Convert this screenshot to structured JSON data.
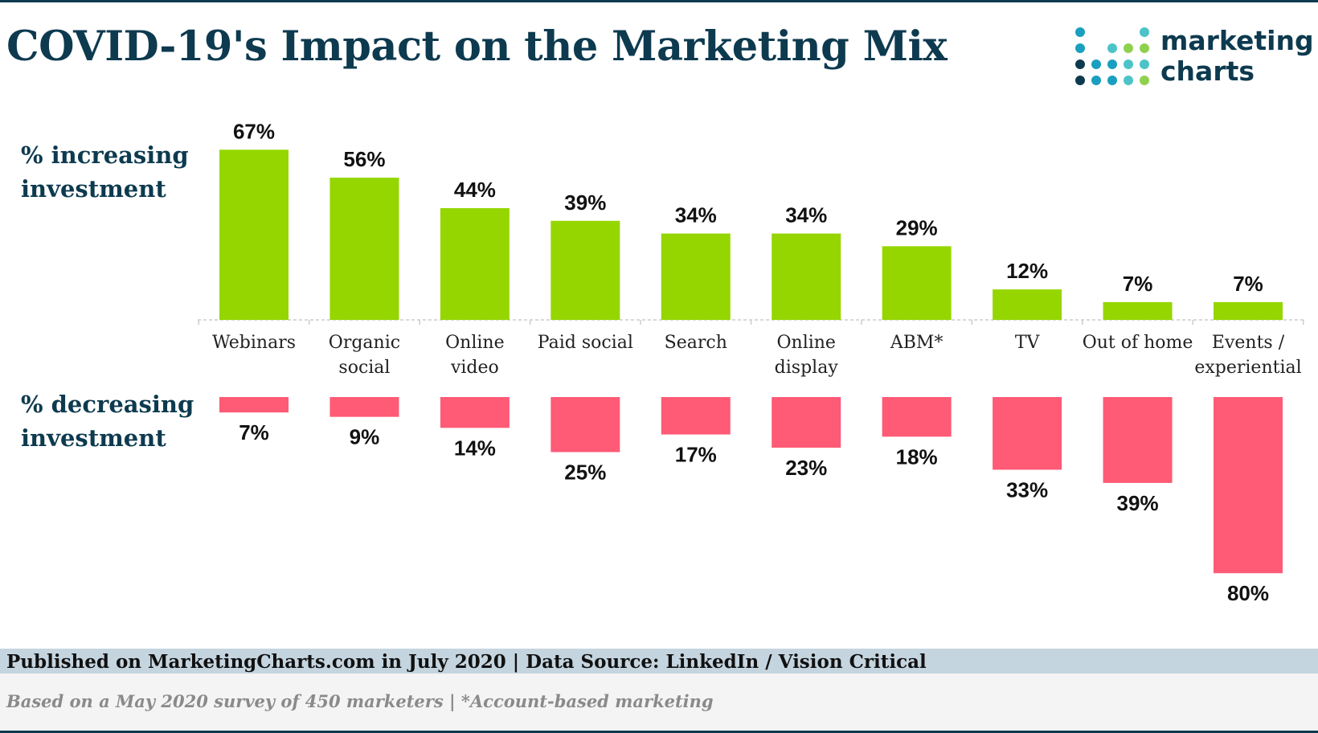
{
  "title": "COVID-19's Impact on the Marketing Mix",
  "logo": {
    "line1": "marketing",
    "line2": "charts"
  },
  "labels": {
    "increasing": [
      "% increasing",
      "investment"
    ],
    "decreasing": [
      "% decreasing",
      "investment"
    ]
  },
  "footer": {
    "source": "Published on MarketingCharts.com in July 2020 | Data Source: LinkedIn / Vision Critical",
    "note": "Based on a May 2020 survey of 450 marketers | *Account-based marketing"
  },
  "colors": {
    "increase": "#95d600",
    "decrease": "#ff5a76",
    "title": "#0d3a4f",
    "logo_dots": [
      "#0d3a4f",
      "#1a9fbf",
      "#4cc4c7",
      "#8fd14f"
    ]
  },
  "chart_data": {
    "type": "bar",
    "categories": [
      [
        "Webinars"
      ],
      [
        "Organic",
        "social"
      ],
      [
        "Online",
        "video"
      ],
      [
        "Paid social"
      ],
      [
        "Search"
      ],
      [
        "Online",
        "display"
      ],
      [
        "ABM*"
      ],
      [
        "TV"
      ],
      [
        "Out of home"
      ],
      [
        "Events /",
        "experiential"
      ]
    ],
    "series": [
      {
        "values": [
          67,
          56,
          44,
          39,
          34,
          34,
          29,
          12,
          7,
          7
        ]
      },
      {
        "values": [
          7,
          9,
          14,
          25,
          17,
          23,
          18,
          33,
          39,
          80
        ]
      }
    ],
    "value_suffix": "%",
    "title": "",
    "xlabel": "",
    "ylabel": "",
    "grid": false,
    "legend": "none"
  }
}
